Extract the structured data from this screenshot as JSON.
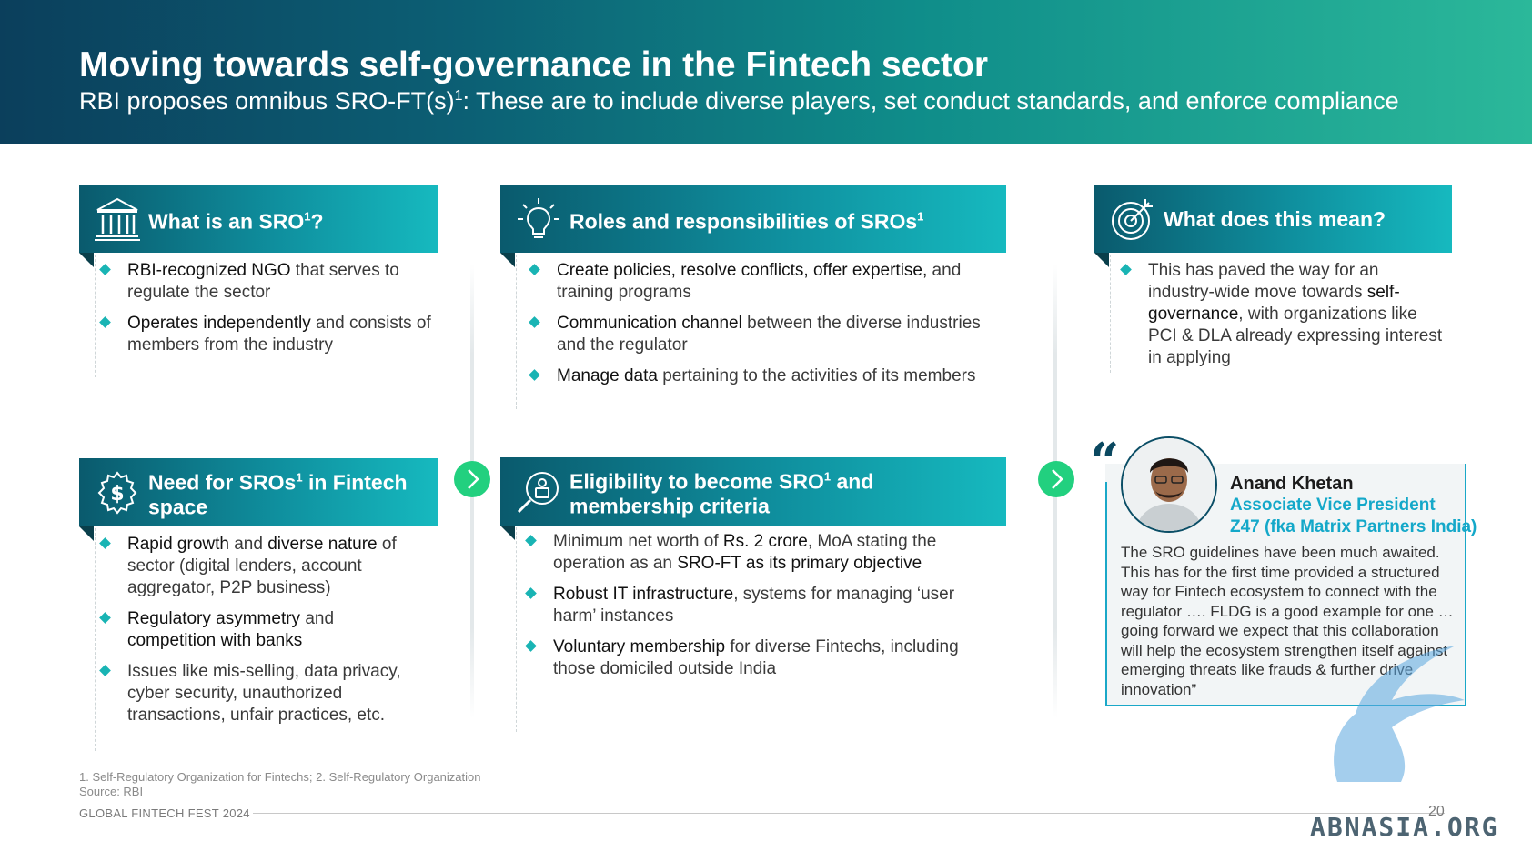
{
  "header": {
    "title": "Moving towards self-governance in the Fintech sector",
    "subtitle_a": "RBI proposes omnibus SRO-FT(s)",
    "subtitle_sup": "1",
    "subtitle_b": ": These are to include diverse players, set conduct standards, and enforce compliance"
  },
  "cards": {
    "what_sro": {
      "title": "What is an SRO",
      "sup": "1",
      "suffix": "?",
      "bullets": [
        {
          "bold": "RBI-recognized NGO",
          "rest": " that serves to regulate the sector"
        },
        {
          "bold": "Operates independently",
          "rest": " and consists of members from the industry"
        }
      ]
    },
    "roles": {
      "title": "Roles and responsibilities of SROs",
      "sup": "1",
      "bullets": [
        {
          "bold": "Create policies, resolve conflicts, offer expertise,",
          "rest": " and training programs"
        },
        {
          "bold": "Communication channel",
          "rest": " between the diverse industries and the regulator"
        },
        {
          "bold": "Manage data",
          "rest": " pertaining to the activities of its members"
        }
      ]
    },
    "meaning": {
      "title": "What does this mean?",
      "b1_pre": "This has paved the way for an industry-wide move towards ",
      "b1_bold": "self-governance",
      "b1_post": ", with organizations like PCI & DLA already expressing interest in applying"
    },
    "need": {
      "title_a": "Need for SROs",
      "sup": "1",
      "title_b": " in Fintech space",
      "b1_bold1": "Rapid growth",
      "b1_mid": " and ",
      "b1_bold2": "diverse nature",
      "b1_rest": " of sector (digital lenders, account aggregator, P2P business)",
      "b2_bold1": "Regulatory asymmetry",
      "b2_mid": " and ",
      "b2_bold2": "competition with banks",
      "b3": "Issues like mis-selling, data privacy, cyber security, unauthorized transactions, unfair practices, etc."
    },
    "eligibility": {
      "title_a": "Eligibility to become SRO",
      "sup": "1",
      "title_b": " and membership criteria",
      "b1_pre": "Minimum net worth of ",
      "b1_bold1": "Rs. 2 crore",
      "b1_mid": ", MoA stating the operation as an ",
      "b1_bold2": "SRO-FT as its primary objective",
      "b2_bold": "Robust IT infrastructure",
      "b2_rest": ", systems for managing ‘user harm’ instances",
      "b3_bold": "Voluntary membership",
      "b3_rest": " for diverse Fintechs, including those domiciled outside India"
    }
  },
  "quote": {
    "mark": "“",
    "name": "Anand Khetan",
    "role": "Associate Vice President",
    "org": "Z47 (fka Matrix Partners India)",
    "text": "The SRO guidelines have been much awaited. This has for the first time provided a structured way for Fintech ecosystem to connect with the regulator …. FLDG is a good example for one … going forward we expect that this collaboration will help the ecosystem strengthen itself against emerging threats like frauds & further drive innovation”"
  },
  "footer": {
    "footnote": "1. Self-Regulatory Organization for Fintechs; 2. Self-Regulatory Organization",
    "source": "Source: RBI",
    "event": "GLOBAL FINTECH FEST 2024",
    "page": "20",
    "watermark": "ABNASIA.ORG"
  },
  "colors": {
    "accent_teal": "#16b9bf",
    "arrow_green": "#22d07f",
    "quote_blue": "#14a8c9",
    "header_dark": "#0b3f5c"
  },
  "icons": [
    "bank-icon",
    "lightbulb-icon",
    "target-icon",
    "dollar-gear-icon",
    "badge-search-icon",
    "chevron-right-icon"
  ]
}
